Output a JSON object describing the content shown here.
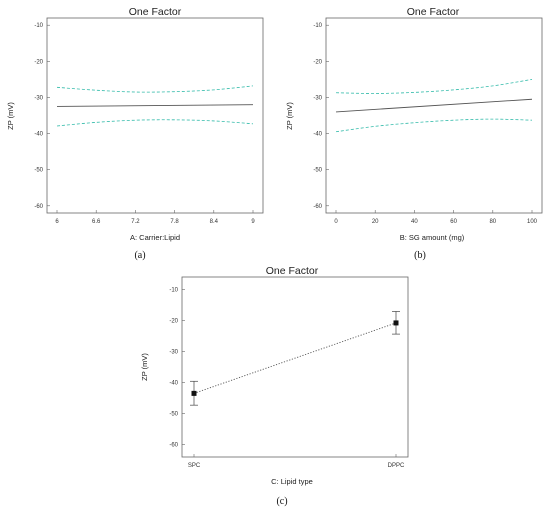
{
  "chart_data": [
    {
      "type": "line",
      "title": "One Factor",
      "xlabel": "A: Carrier:Lipid",
      "ylabel": "ZP (mV)",
      "panel_label": "(a)",
      "xlim": [
        6,
        9
      ],
      "ylim": [
        -62,
        -8
      ],
      "x_ticks": [
        "6",
        "6.6",
        "7.2",
        "7.8",
        "8.4",
        "9"
      ],
      "y_ticks": [
        "-10",
        "-20",
        "-30",
        "-40",
        "-50",
        "-60"
      ],
      "series": [
        {
          "role": "mean",
          "style": "solid",
          "color": "#555555",
          "x": [
            6,
            9
          ],
          "y": [
            -32.5,
            -32.0
          ]
        },
        {
          "role": "upper",
          "style": "dashed",
          "color": "#33bbaa",
          "x": [
            6,
            6.6,
            7.2,
            7.8,
            8.4,
            9
          ],
          "y": [
            -27.2,
            -28.0,
            -28.5,
            -28.4,
            -27.9,
            -26.8
          ]
        },
        {
          "role": "lower",
          "style": "dashed",
          "color": "#33bbaa",
          "x": [
            6,
            6.6,
            7.2,
            7.8,
            8.4,
            9
          ],
          "y": [
            -37.9,
            -36.9,
            -36.3,
            -36.2,
            -36.5,
            -37.3
          ]
        }
      ]
    },
    {
      "type": "line",
      "title": "One Factor",
      "xlabel": "B: SG amount (mg)",
      "ylabel": "ZP (mV)",
      "panel_label": "(b)",
      "xlim": [
        0,
        100
      ],
      "ylim": [
        -62,
        -8
      ],
      "x_ticks": [
        "0",
        "20",
        "40",
        "60",
        "80",
        "100"
      ],
      "y_ticks": [
        "-10",
        "-20",
        "-30",
        "-40",
        "-50",
        "-60"
      ],
      "series": [
        {
          "role": "mean",
          "style": "solid",
          "color": "#555555",
          "x": [
            0,
            100
          ],
          "y": [
            -34.0,
            -30.5
          ]
        },
        {
          "role": "upper",
          "style": "dashed",
          "color": "#33bbaa",
          "x": [
            0,
            20,
            40,
            60,
            80,
            100
          ],
          "y": [
            -28.7,
            -28.9,
            -28.6,
            -27.9,
            -26.8,
            -25.0
          ]
        },
        {
          "role": "lower",
          "style": "dashed",
          "color": "#33bbaa",
          "x": [
            0,
            20,
            40,
            60,
            80,
            100
          ],
          "y": [
            -39.5,
            -38.0,
            -37.0,
            -36.3,
            -36.0,
            -36.3
          ]
        }
      ]
    },
    {
      "type": "line",
      "title": "One Factor",
      "xlabel": "C: Lipid type",
      "ylabel": "ZP (mV)",
      "panel_label": "(c)",
      "categories": [
        "SPC",
        "DPPC"
      ],
      "ylim": [
        -64,
        -6
      ],
      "y_ticks": [
        "-10",
        "-20",
        "-30",
        "-40",
        "-50",
        "-60"
      ],
      "series": [
        {
          "role": "mean",
          "style": "dotted",
          "color": "#555555",
          "values": [
            -43.5,
            -20.8
          ],
          "error_low": [
            -47.3,
            -24.4
          ],
          "error_high": [
            -39.6,
            -17.1
          ]
        }
      ]
    }
  ]
}
